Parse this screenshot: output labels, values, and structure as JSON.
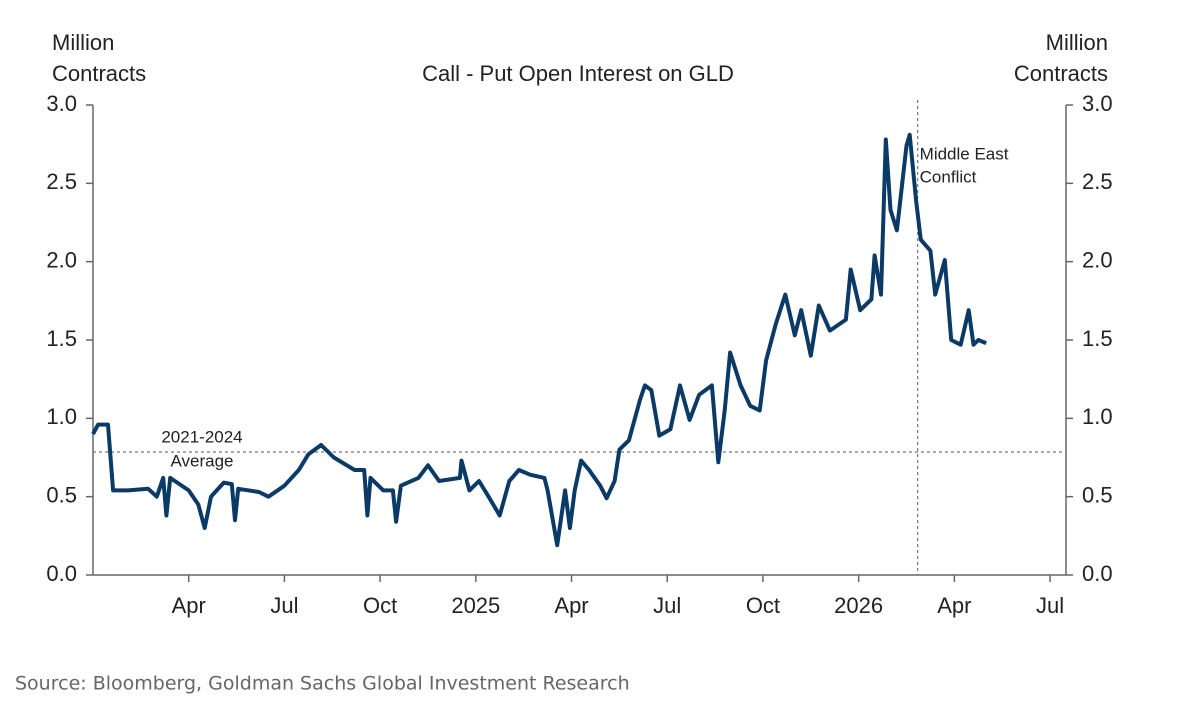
{
  "chart_data": {
    "type": "line",
    "title": "Call - Put Open Interest on GLD",
    "y_label": [
      "Million",
      "Contracts"
    ],
    "y2_label": [
      "Million",
      "Contracts"
    ],
    "source": "Source: Bloomberg, Goldman Sachs Global Investment Research",
    "x": [
      0,
      0.16,
      0.47,
      0.63,
      1.1,
      1.73,
      2.0,
      2.2,
      2.3,
      2.42,
      3.0,
      3.3,
      3.5,
      3.7,
      4.1,
      4.35,
      4.45,
      4.55,
      5.2,
      5.5,
      6.0,
      6.45,
      6.75,
      7.15,
      7.55,
      8.2,
      8.5,
      8.6,
      8.7,
      9.1,
      9.4,
      9.5,
      9.65,
      10.2,
      10.5,
      10.85,
      11.5,
      11.55,
      11.8,
      12.1,
      12.4,
      12.75,
      13.05,
      13.35,
      13.7,
      14.15,
      14.25,
      14.55,
      14.8,
      14.95,
      15.1,
      15.3,
      15.55,
      15.9,
      16.1,
      16.35,
      16.5,
      16.8,
      17.15,
      17.3,
      17.5,
      17.75,
      18.1,
      18.4,
      18.7,
      19.0,
      19.4,
      19.6,
      19.8,
      19.97,
      20.3,
      20.6,
      20.9,
      21.1,
      21.4,
      21.7,
      22.0,
      22.2,
      22.5,
      22.75,
      23.1,
      23.6,
      23.75,
      24.05,
      24.4,
      24.5,
      24.7,
      24.85,
      25.0,
      25.2,
      25.5,
      25.6,
      25.8,
      25.95,
      26.25,
      26.4,
      26.7,
      26.9,
      27.2,
      27.45,
      27.6,
      27.75,
      28.0
    ],
    "series": [
      {
        "name": "Call - Put Open Interest",
        "color": "#0b3a66",
        "values": [
          0.9,
          0.96,
          0.96,
          0.54,
          0.54,
          0.55,
          0.5,
          0.62,
          0.38,
          0.62,
          0.54,
          0.45,
          0.3,
          0.5,
          0.59,
          0.58,
          0.35,
          0.55,
          0.53,
          0.5,
          0.57,
          0.67,
          0.77,
          0.83,
          0.75,
          0.67,
          0.67,
          0.38,
          0.62,
          0.54,
          0.54,
          0.34,
          0.57,
          0.62,
          0.7,
          0.6,
          0.62,
          0.73,
          0.54,
          0.6,
          0.5,
          0.38,
          0.6,
          0.67,
          0.64,
          0.62,
          0.54,
          0.19,
          0.54,
          0.3,
          0.54,
          0.73,
          0.67,
          0.57,
          0.49,
          0.6,
          0.8,
          0.86,
          1.12,
          1.21,
          1.18,
          0.89,
          0.93,
          1.21,
          0.99,
          1.15,
          1.21,
          0.72,
          1.05,
          1.42,
          1.21,
          1.08,
          1.05,
          1.37,
          1.6,
          1.79,
          1.53,
          1.69,
          1.4,
          1.72,
          1.56,
          1.63,
          1.95,
          1.69,
          1.76,
          2.04,
          1.79,
          2.78,
          2.33,
          2.2,
          2.74,
          2.81,
          2.39,
          2.14,
          2.07,
          1.79,
          2.01,
          1.5,
          1.47,
          1.69,
          1.47,
          1.5,
          1.48
        ]
      }
    ],
    "xlim": [
      0,
      30.5
    ],
    "xticks": [
      {
        "value": 3,
        "label": "Apr"
      },
      {
        "value": 6,
        "label": "Jul"
      },
      {
        "value": 9,
        "label": "Oct"
      },
      {
        "value": 12,
        "label": "2025"
      },
      {
        "value": 15,
        "label": "Apr"
      },
      {
        "value": 18,
        "label": "Jul"
      },
      {
        "value": 21,
        "label": "Oct"
      },
      {
        "value": 24,
        "label": "2026"
      },
      {
        "value": 27,
        "label": "Apr"
      },
      {
        "value": 30,
        "label": "Jul"
      }
    ],
    "ylim": [
      0,
      3
    ],
    "yticks": [
      {
        "value": 0,
        "label": "0.0"
      },
      0.5,
      {
        "value": 1,
        "label": "1.0"
      },
      1.5,
      {
        "value": 2,
        "label": "2.0"
      },
      2.5,
      {
        "value": 3,
        "label": "3.0"
      }
    ],
    "y2lim": [
      0,
      3
    ],
    "y2ticks": [
      {
        "value": 0,
        "label": "0.0"
      },
      0.5,
      {
        "value": 1,
        "label": "1.0"
      },
      1.5,
      {
        "value": 2,
        "label": "2.0"
      },
      2.5,
      {
        "value": 3,
        "label": "3.0"
      }
    ],
    "hline": {
      "label": [
        "2021-2024",
        "Average"
      ],
      "value": 0.785
    },
    "vline": {
      "label": [
        "Middle East",
        "Conflict"
      ],
      "x": 25.85
    }
  }
}
